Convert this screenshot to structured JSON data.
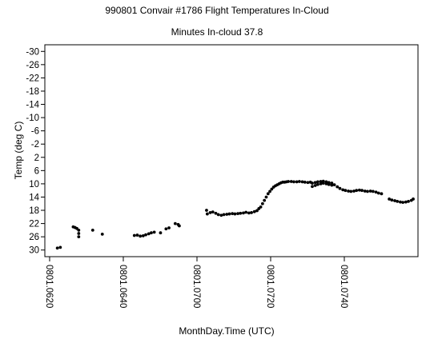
{
  "chart_data": {
    "type": "scatter",
    "title": "990801 Convair #1786 Flight Temperatures In-Cloud",
    "subtitle": "Minutes In-cloud 37.8",
    "xlabel": "MonthDay.Time (UTC)",
    "ylabel": "Temp (deg C)",
    "x_unit": "minutes after 0801.0600 UTC",
    "xlim": [
      18.7,
      120
    ],
    "ylim": [
      32,
      -32
    ],
    "y_inverted": true,
    "grid": false,
    "legend": "none",
    "x_ticks": [
      {
        "value": 20,
        "label": "0801.0620"
      },
      {
        "value": 40,
        "label": "0801.0640"
      },
      {
        "value": 60,
        "label": "0801.0700"
      },
      {
        "value": 80,
        "label": "0801.0720"
      },
      {
        "value": 100,
        "label": "0801.0740"
      }
    ],
    "y_ticks": [
      {
        "value": -30,
        "label": "-30"
      },
      {
        "value": -26,
        "label": "-26"
      },
      {
        "value": -22,
        "label": "-22"
      },
      {
        "value": -18,
        "label": "-18"
      },
      {
        "value": -14,
        "label": "-14"
      },
      {
        "value": -10,
        "label": "-10"
      },
      {
        "value": -6,
        "label": "-6"
      },
      {
        "value": -2,
        "label": "-2"
      },
      {
        "value": 2,
        "label": "2"
      },
      {
        "value": 6,
        "label": "6"
      },
      {
        "value": 10,
        "label": "10"
      },
      {
        "value": 14,
        "label": "14"
      },
      {
        "value": 18,
        "label": "18"
      },
      {
        "value": 22,
        "label": "22"
      },
      {
        "value": 26,
        "label": "26"
      },
      {
        "value": 30,
        "label": "30"
      }
    ],
    "points": [
      {
        "x": 22.1,
        "y": 29.4
      },
      {
        "x": 22.9,
        "y": 29.2
      },
      {
        "x": 26.4,
        "y": 23.0
      },
      {
        "x": 26.9,
        "y": 23.2
      },
      {
        "x": 27.4,
        "y": 23.5
      },
      {
        "x": 27.9,
        "y": 24.0
      },
      {
        "x": 27.9,
        "y": 25.0
      },
      {
        "x": 27.9,
        "y": 26.0
      },
      {
        "x": 31.7,
        "y": 24.0
      },
      {
        "x": 34.3,
        "y": 25.2
      },
      {
        "x": 43.0,
        "y": 25.6
      },
      {
        "x": 43.8,
        "y": 25.5
      },
      {
        "x": 44.6,
        "y": 25.8
      },
      {
        "x": 45.4,
        "y": 25.7
      },
      {
        "x": 46.1,
        "y": 25.4
      },
      {
        "x": 46.9,
        "y": 25.1
      },
      {
        "x": 47.6,
        "y": 24.8
      },
      {
        "x": 48.4,
        "y": 24.6
      },
      {
        "x": 50.1,
        "y": 24.8
      },
      {
        "x": 51.6,
        "y": 23.6
      },
      {
        "x": 52.4,
        "y": 23.3
      },
      {
        "x": 54.1,
        "y": 22.0
      },
      {
        "x": 54.9,
        "y": 22.3
      },
      {
        "x": 55.2,
        "y": 22.7
      },
      {
        "x": 62.6,
        "y": 18.0
      },
      {
        "x": 62.8,
        "y": 19.1
      },
      {
        "x": 63.6,
        "y": 18.7
      },
      {
        "x": 64.3,
        "y": 18.5
      },
      {
        "x": 65.1,
        "y": 18.9
      },
      {
        "x": 65.8,
        "y": 19.3
      },
      {
        "x": 66.6,
        "y": 19.5
      },
      {
        "x": 67.3,
        "y": 19.3
      },
      {
        "x": 68.1,
        "y": 19.2
      },
      {
        "x": 68.8,
        "y": 19.1
      },
      {
        "x": 69.6,
        "y": 19.0
      },
      {
        "x": 70.3,
        "y": 19.1
      },
      {
        "x": 71.1,
        "y": 19.0
      },
      {
        "x": 71.8,
        "y": 18.9
      },
      {
        "x": 72.6,
        "y": 18.8
      },
      {
        "x": 73.3,
        "y": 18.6
      },
      {
        "x": 74.1,
        "y": 18.8
      },
      {
        "x": 74.8,
        "y": 18.7
      },
      {
        "x": 75.6,
        "y": 18.4
      },
      {
        "x": 76.3,
        "y": 18.1
      },
      {
        "x": 76.8,
        "y": 17.5
      },
      {
        "x": 77.3,
        "y": 17.0
      },
      {
        "x": 77.8,
        "y": 16.0
      },
      {
        "x": 78.3,
        "y": 15.0
      },
      {
        "x": 78.8,
        "y": 14.0
      },
      {
        "x": 79.3,
        "y": 13.0
      },
      {
        "x": 79.8,
        "y": 12.3
      },
      {
        "x": 80.3,
        "y": 11.6
      },
      {
        "x": 80.8,
        "y": 11.0
      },
      {
        "x": 81.3,
        "y": 10.6
      },
      {
        "x": 81.8,
        "y": 10.3
      },
      {
        "x": 82.3,
        "y": 10.0
      },
      {
        "x": 82.8,
        "y": 9.7
      },
      {
        "x": 83.3,
        "y": 9.5
      },
      {
        "x": 83.8,
        "y": 9.5
      },
      {
        "x": 84.3,
        "y": 9.4
      },
      {
        "x": 84.8,
        "y": 9.3
      },
      {
        "x": 85.6,
        "y": 9.3
      },
      {
        "x": 86.3,
        "y": 9.4
      },
      {
        "x": 87.1,
        "y": 9.4
      },
      {
        "x": 87.8,
        "y": 9.3
      },
      {
        "x": 88.6,
        "y": 9.4
      },
      {
        "x": 89.3,
        "y": 9.5
      },
      {
        "x": 90.1,
        "y": 9.6
      },
      {
        "x": 90.8,
        "y": 9.5
      },
      {
        "x": 91.3,
        "y": 9.8
      },
      {
        "x": 91.3,
        "y": 10.8
      },
      {
        "x": 92.1,
        "y": 9.6
      },
      {
        "x": 92.1,
        "y": 10.5
      },
      {
        "x": 92.8,
        "y": 9.4
      },
      {
        "x": 92.8,
        "y": 10.2
      },
      {
        "x": 93.6,
        "y": 9.3
      },
      {
        "x": 93.6,
        "y": 10.0
      },
      {
        "x": 94.3,
        "y": 9.2
      },
      {
        "x": 94.3,
        "y": 9.8
      },
      {
        "x": 95.1,
        "y": 9.4
      },
      {
        "x": 95.1,
        "y": 10.0
      },
      {
        "x": 95.8,
        "y": 9.6
      },
      {
        "x": 95.8,
        "y": 10.2
      },
      {
        "x": 96.6,
        "y": 9.8
      },
      {
        "x": 96.6,
        "y": 10.4
      },
      {
        "x": 97.3,
        "y": 10.3
      },
      {
        "x": 98.1,
        "y": 10.9
      },
      {
        "x": 98.8,
        "y": 11.4
      },
      {
        "x": 99.6,
        "y": 11.8
      },
      {
        "x": 100.3,
        "y": 12.0
      },
      {
        "x": 101.1,
        "y": 12.2
      },
      {
        "x": 101.8,
        "y": 12.3
      },
      {
        "x": 102.6,
        "y": 12.2
      },
      {
        "x": 103.3,
        "y": 12.0
      },
      {
        "x": 104.1,
        "y": 11.9
      },
      {
        "x": 104.8,
        "y": 12.0
      },
      {
        "x": 105.6,
        "y": 12.2
      },
      {
        "x": 106.3,
        "y": 12.3
      },
      {
        "x": 107.1,
        "y": 12.2
      },
      {
        "x": 107.8,
        "y": 12.3
      },
      {
        "x": 108.6,
        "y": 12.5
      },
      {
        "x": 109.3,
        "y": 12.8
      },
      {
        "x": 110.1,
        "y": 13.0
      },
      {
        "x": 112.2,
        "y": 14.6
      },
      {
        "x": 112.9,
        "y": 14.9
      },
      {
        "x": 113.7,
        "y": 15.1
      },
      {
        "x": 114.4,
        "y": 15.3
      },
      {
        "x": 115.2,
        "y": 15.5
      },
      {
        "x": 115.9,
        "y": 15.6
      },
      {
        "x": 116.7,
        "y": 15.5
      },
      {
        "x": 117.4,
        "y": 15.3
      },
      {
        "x": 118.2,
        "y": 15.0
      },
      {
        "x": 118.7,
        "y": 14.6
      }
    ]
  }
}
